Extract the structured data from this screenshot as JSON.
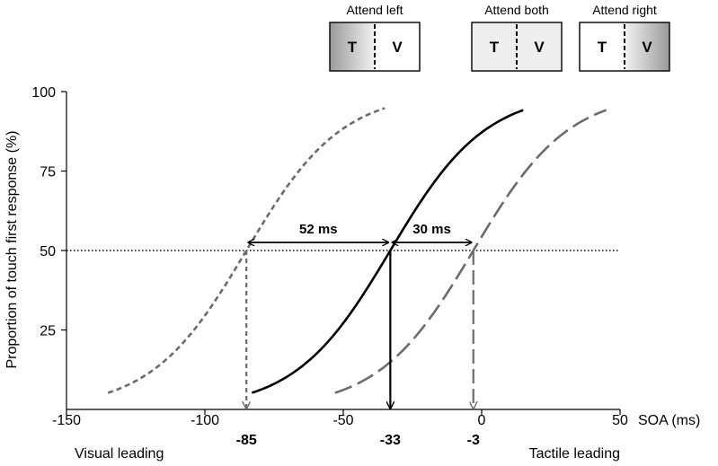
{
  "chart_data": {
    "type": "line",
    "xlabel": "SOA (ms)",
    "ylabel": "Proportion of touch first response (%)",
    "xlim": [
      -150,
      50
    ],
    "ylim": [
      0,
      100
    ],
    "xticks": [
      -150,
      -100,
      -50,
      0,
      50
    ],
    "yticks": [
      25,
      50,
      75,
      100
    ],
    "reference_line_y": 50,
    "series": [
      {
        "condition": "Attend left",
        "pse": -85,
        "x_range": [
          -135,
          -35
        ],
        "color": "#6b6b6b",
        "dash": "short"
      },
      {
        "condition": "Attend both",
        "pse": -33,
        "x_range": [
          -83,
          15
        ],
        "color": "#000000",
        "dash": "solid"
      },
      {
        "condition": "Attend right",
        "pse": -3,
        "x_range": [
          -53,
          45
        ],
        "color": "#6b6b6b",
        "dash": "long"
      }
    ],
    "pse_labels": [
      "-85",
      "-33",
      "-3"
    ],
    "differences": [
      {
        "from": -85,
        "to": -33,
        "label": "52 ms"
      },
      {
        "from": -33,
        "to": -3,
        "label": "30 ms"
      }
    ],
    "annotations": {
      "left": "Visual leading",
      "right": "Tactile leading"
    },
    "condition_icons": [
      {
        "title": "Attend left",
        "left_letter": "T",
        "right_letter": "V",
        "shade": "left"
      },
      {
        "title": "Attend both",
        "left_letter": "T",
        "right_letter": "V",
        "shade": "both"
      },
      {
        "title": "Attend right",
        "left_letter": "T",
        "right_letter": "V",
        "shade": "right"
      }
    ]
  }
}
